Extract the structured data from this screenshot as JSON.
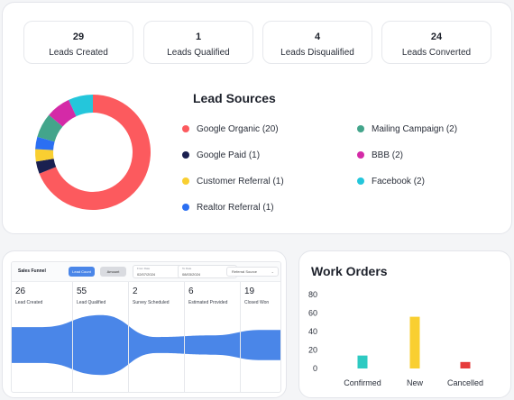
{
  "stats": [
    {
      "value": "29",
      "label": "Leads Created"
    },
    {
      "value": "1",
      "label": "Leads Qualified"
    },
    {
      "value": "4",
      "label": "Leads Disqualified"
    },
    {
      "value": "24",
      "label": "Leads Converted"
    }
  ],
  "lead_sources": {
    "title": "Lead Sources",
    "items": [
      {
        "label": "Google Organic (20)",
        "value": 20,
        "color": "#fc5a5e"
      },
      {
        "label": "Google Paid (1)",
        "value": 1,
        "color": "#1a2050"
      },
      {
        "label": "Customer Referral (1)",
        "value": 1,
        "color": "#f9cf31"
      },
      {
        "label": "Realtor Referral (1)",
        "value": 1,
        "color": "#2b6ff2"
      },
      {
        "label": "Mailing Campaign (2)",
        "value": 2,
        "color": "#43a58b"
      },
      {
        "label": "BBB (2)",
        "value": 2,
        "color": "#d42aa7"
      },
      {
        "label": "Facebook (2)",
        "value": 2,
        "color": "#24c6db"
      }
    ]
  },
  "sales_funnel": {
    "title": "Sales Funnel",
    "btn_lead_count": "Lead Count",
    "btn_amount": "Amount",
    "from_caption": "From Date",
    "from_value": "02/07/2024",
    "to_caption": "To Date",
    "to_value": "08/03/2024",
    "select_label": "Referral Source",
    "stages": [
      {
        "value": "26",
        "label": "Lead Created"
      },
      {
        "value": "55",
        "label": "Lead Qualified"
      },
      {
        "value": "2",
        "label": "Survey Scheduled"
      },
      {
        "value": "6",
        "label": "Estimated Provided"
      },
      {
        "value": "19",
        "label": "Closed Won"
      }
    ],
    "color": "#4a86e8"
  },
  "work_orders": {
    "title": "Work Orders"
  },
  "chart_data": {
    "type": "bar",
    "categories": [
      "Confirmed",
      "New",
      "Cancelled"
    ],
    "values": [
      14,
      56,
      7
    ],
    "colors": [
      "#2ecac2",
      "#f9cf31",
      "#e63b3b"
    ],
    "yticks": [
      "80",
      "60",
      "40",
      "20",
      "0"
    ],
    "ylim": [
      0,
      80
    ],
    "grid": false
  }
}
